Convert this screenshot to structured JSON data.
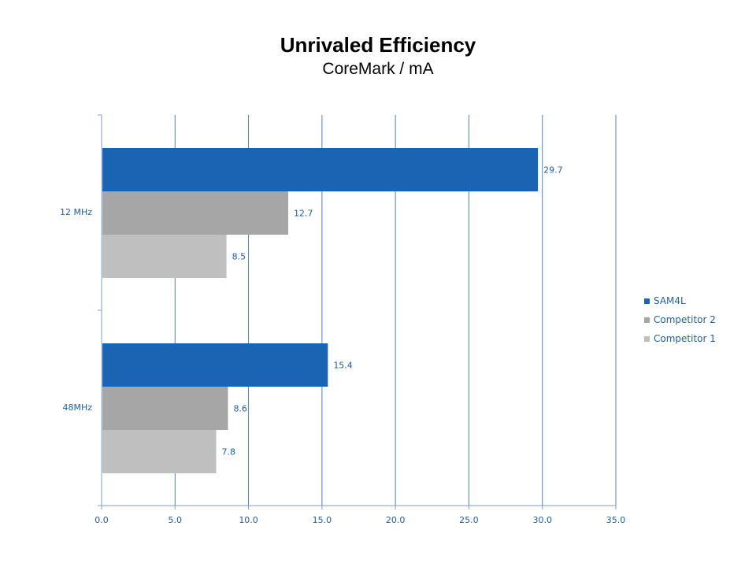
{
  "chart_data": {
    "type": "bar",
    "orientation": "horizontal",
    "title": "Unrivaled Efficiency",
    "subtitle": "CoreMark / mA",
    "categories": [
      "12 MHz",
      "48MHz"
    ],
    "series": [
      {
        "name": "SAM4L",
        "values": [
          29.7,
          15.4
        ],
        "color": "#1b63b3"
      },
      {
        "name": "Competitor 2",
        "values": [
          12.7,
          8.6
        ],
        "color": "#a6a6a6"
      },
      {
        "name": "Competitor 1",
        "values": [
          8.5,
          7.8
        ],
        "color": "#bfbfbf"
      }
    ],
    "data_labels": [
      [
        "29.7",
        "15.4"
      ],
      [
        "12.7",
        "8.6"
      ],
      [
        "8.5",
        "7.8"
      ]
    ],
    "xlim": [
      0,
      35
    ],
    "x_ticks": [
      "0.0",
      "5.0",
      "10.0",
      "15.0",
      "20.0",
      "25.0",
      "30.0",
      "35.0"
    ],
    "grid": true,
    "legend_position": "right"
  }
}
